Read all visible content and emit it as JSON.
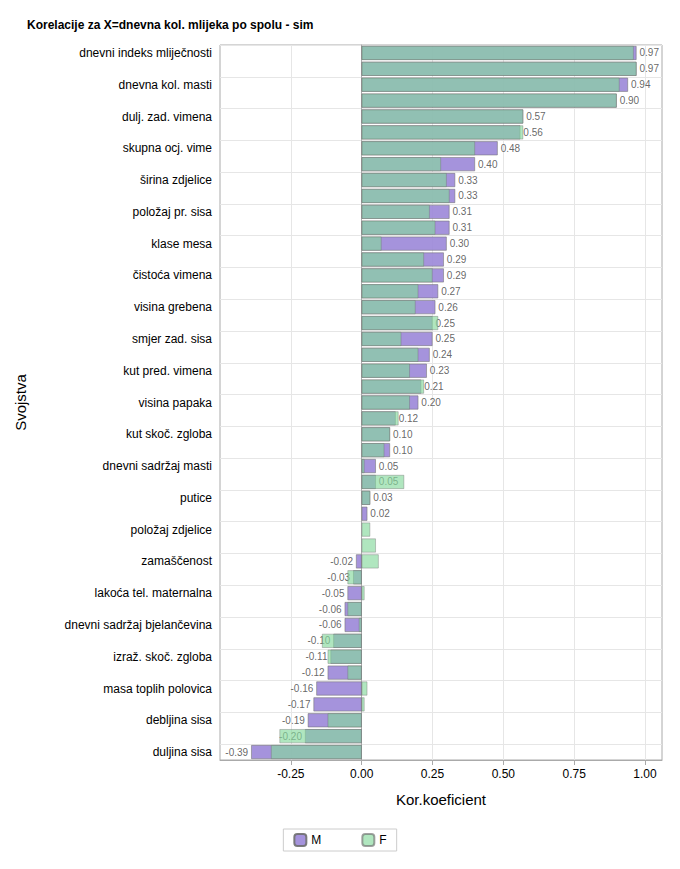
{
  "chart_data": {
    "type": "bar",
    "title": "Korelacije za X=dnevna kol. mlijeka po spolu - sim",
    "x_label": "Kor.koeficient",
    "y_label": "Svojstva",
    "orientation": "horizontal",
    "grid": true,
    "legend": "bottom",
    "data_labels": true,
    "categories": [
      "dnevni indeks mliječnosti",
      null,
      "dnevna kol. masti",
      null,
      "dulj. zad. vimena",
      null,
      "skupna ocj. vime",
      null,
      "širina zdjelice",
      null,
      "položaj pr. sisa",
      null,
      "klase mesa",
      null,
      "čistoća vimena",
      null,
      "visina grebena",
      null,
      "smjer zad. sisa",
      null,
      "kut pred. vimena",
      null,
      "visina papaka",
      null,
      "kut skoč. zgloba",
      null,
      "dnevni sadržaj masti",
      null,
      "putice",
      null,
      "položaj zdjelice",
      null,
      "zamaščenost",
      null,
      "lakoća tel. maternalna",
      null,
      "dnevni sadržaj bjelančevina",
      null,
      "izraž. skoč. zgloba",
      null,
      "masa toplih polovica",
      null,
      "debljina sisa",
      null,
      "duljina sisa"
    ],
    "series": [
      {
        "name": "M",
        "color": "#9b87d8",
        "values": [
          0.97,
          0.97,
          0.94,
          0.9,
          0.57,
          0.56,
          0.48,
          0.4,
          0.33,
          0.33,
          0.31,
          0.31,
          0.3,
          0.29,
          0.29,
          0.27,
          0.26,
          0.25,
          0.25,
          0.24,
          0.23,
          0.21,
          0.2,
          0.12,
          0.1,
          0.1,
          0.05,
          0.05,
          0.03,
          0.02,
          null,
          null,
          -0.02,
          -0.03,
          -0.05,
          -0.06,
          -0.06,
          -0.1,
          -0.11,
          -0.12,
          -0.16,
          -0.17,
          -0.19,
          -0.2,
          -0.39
        ],
        "value_labels": [
          "0.97",
          "0.97",
          "0.94",
          "0.90",
          "0.57",
          "0.56",
          "0.48",
          "0.40",
          "0.33",
          "0.33",
          "0.31",
          "0.31",
          "0.30",
          "0.29",
          "0.29",
          "0.27",
          "0.26",
          "0.25",
          "0.25",
          "0.24",
          "0.23",
          "0.21",
          "0.20",
          "0.12",
          "0.10",
          "0.10",
          "0.05",
          "0.05",
          "0.03",
          "0.02",
          null,
          null,
          "-0.02",
          "-0.03",
          "-0.05",
          "-0.06",
          "-0.06",
          "-0.10",
          "-0.11",
          "-0.12",
          "-0.16",
          "-0.17",
          "-0.19",
          "-0.20",
          "-0.39"
        ]
      },
      {
        "name": "F",
        "color": "#86d99c",
        "values": [
          0.96,
          0.97,
          0.91,
          0.9,
          0.57,
          0.57,
          0.4,
          0.28,
          0.3,
          0.31,
          0.24,
          0.26,
          0.07,
          0.22,
          0.25,
          0.2,
          0.19,
          0.27,
          0.14,
          0.2,
          0.17,
          0.22,
          0.17,
          0.13,
          0.1,
          0.08,
          0.01,
          0.15,
          0.03,
          null,
          0.03,
          0.05,
          0.06,
          -0.05,
          0.01,
          -0.05,
          -0.01,
          -0.14,
          -0.12,
          -0.05,
          0.02,
          0.01,
          -0.12,
          -0.29,
          -0.32
        ]
      }
    ],
    "xlim": [
      -0.5,
      1.06
    ],
    "xticks": [
      {
        "value": -0.25,
        "label": "-0.25"
      },
      {
        "value": 0,
        "label": "0.00"
      },
      {
        "value": 0.25,
        "label": "0.25"
      },
      {
        "value": 0.5,
        "label": "0.50"
      },
      {
        "value": 0.75,
        "label": "0.75"
      },
      {
        "value": 1,
        "label": "1.00"
      }
    ]
  }
}
